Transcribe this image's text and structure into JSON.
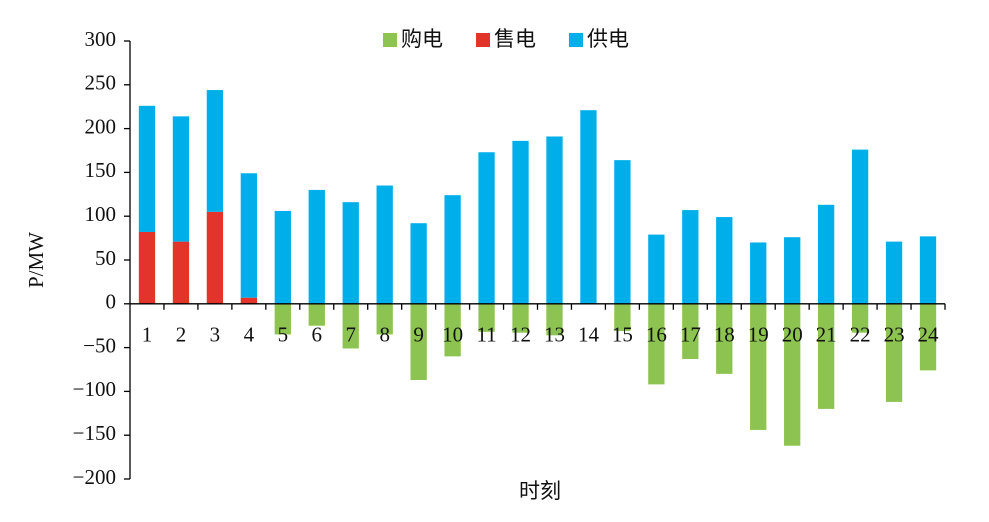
{
  "chart_data": {
    "type": "stacked_bar",
    "x_label": "时刻",
    "y_label": "P/MW",
    "categories": [
      "1",
      "2",
      "3",
      "4",
      "5",
      "6",
      "7",
      "8",
      "9",
      "10",
      "11",
      "12",
      "13",
      "14",
      "15",
      "16",
      "17",
      "18",
      "19",
      "20",
      "21",
      "22",
      "23",
      "24"
    ],
    "series": [
      {
        "name": "购电",
        "color": "#8dc451",
        "values": [
          0,
          0,
          0,
          0,
          -35,
          -25,
          -51,
          -35,
          -87,
          -60,
          -32,
          -33,
          -36,
          0,
          -31,
          -92,
          -63,
          -80,
          -144,
          -162,
          -120,
          -33,
          -112,
          -76
        ]
      },
      {
        "name": "售电",
        "color": "#e2342b",
        "values": [
          82,
          71,
          105,
          7,
          0,
          0,
          0,
          0,
          0,
          0,
          0,
          0,
          0,
          0,
          0,
          0,
          0,
          0,
          0,
          0,
          0,
          0,
          0,
          0
        ]
      },
      {
        "name": "供电",
        "color": "#00aeea",
        "values": [
          144,
          143,
          139,
          142,
          106,
          130,
          116,
          135,
          92,
          124,
          173,
          186,
          191,
          221,
          164,
          79,
          107,
          99,
          70,
          76,
          113,
          176,
          71,
          77
        ]
      }
    ],
    "ylim": [
      -200,
      300
    ],
    "yticks": [
      300,
      250,
      200,
      150,
      100,
      50,
      0,
      {
        "value": -50,
        "label": "−50"
      },
      {
        "value": -100,
        "label": "−100"
      },
      {
        "value": -150,
        "label": "−150"
      },
      {
        "value": -200,
        "label": "−200"
      }
    ],
    "legend": "top"
  }
}
